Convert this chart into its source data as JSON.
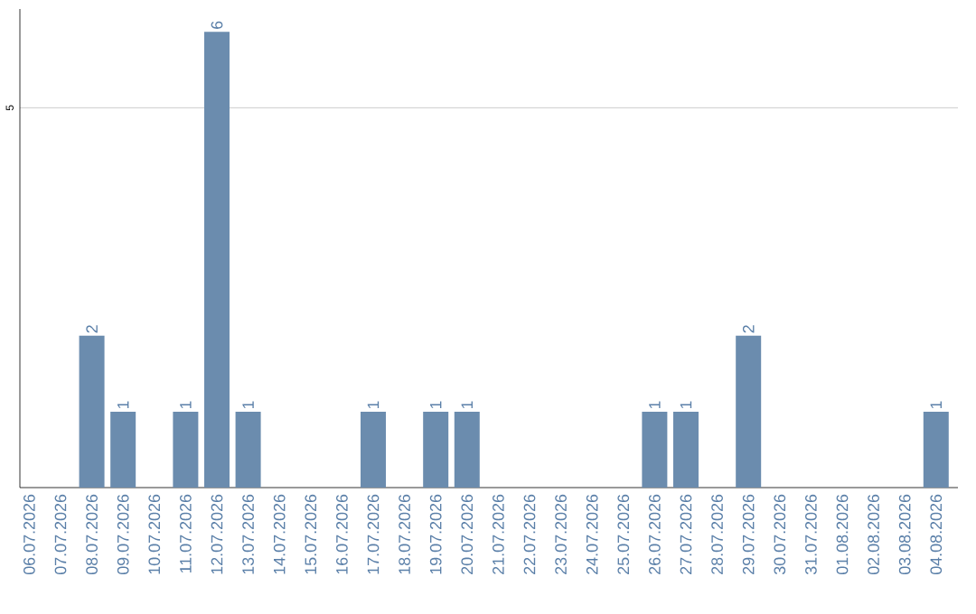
{
  "chart_data": {
    "type": "bar",
    "color": "#6b8cae",
    "categories": [
      "06.07.2026",
      "07.07.2026",
      "08.07.2026",
      "09.07.2026",
      "10.07.2026",
      "11.07.2026",
      "12.07.2026",
      "13.07.2026",
      "14.07.2026",
      "15.07.2026",
      "16.07.2026",
      "17.07.2026",
      "18.07.2026",
      "19.07.2026",
      "20.07.2026",
      "21.07.2026",
      "22.07.2026",
      "23.07.2026",
      "24.07.2026",
      "25.07.2026",
      "26.07.2026",
      "27.07.2026",
      "28.07.2026",
      "29.07.2026",
      "30.07.2026",
      "31.07.2026",
      "01.08.2026",
      "02.08.2026",
      "03.08.2026",
      "04.08.2026"
    ],
    "values": [
      0,
      0,
      2,
      1,
      0,
      1,
      6,
      1,
      0,
      0,
      0,
      1,
      0,
      1,
      1,
      0,
      0,
      0,
      0,
      0,
      1,
      1,
      0,
      2,
      0,
      0,
      0,
      0,
      0,
      1
    ],
    "value_labels": [
      null,
      null,
      "2",
      "1",
      null,
      "1",
      "6",
      "1",
      null,
      null,
      null,
      "1",
      null,
      "1",
      "1",
      null,
      null,
      null,
      null,
      null,
      "1",
      "1",
      null,
      "2",
      null,
      null,
      null,
      null,
      null,
      "1"
    ],
    "ylim": [
      0,
      6.3
    ],
    "yticks": [
      5
    ],
    "grid": "y"
  }
}
